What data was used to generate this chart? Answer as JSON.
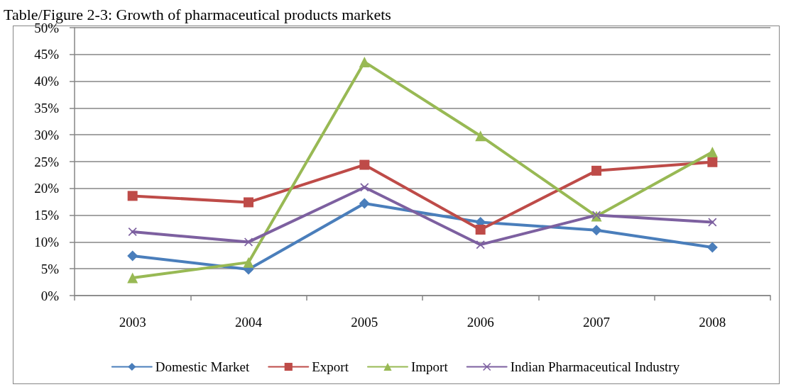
{
  "chart_data": {
    "type": "line",
    "title": "Table/Figure 2-3: Growth of pharmaceutical products markets",
    "categories": [
      "2003",
      "2004",
      "2005",
      "2006",
      "2007",
      "2008"
    ],
    "series": [
      {
        "name": "Domestic Market",
        "color": "#4a7ebb",
        "marker": "diamond",
        "values": [
          7.4,
          4.9,
          17.2,
          13.7,
          12.2,
          9.0
        ]
      },
      {
        "name": "Export",
        "color": "#be4b48",
        "marker": "square",
        "values": [
          18.6,
          17.4,
          24.4,
          12.3,
          23.3,
          24.9
        ]
      },
      {
        "name": "Import",
        "color": "#98b954",
        "marker": "triangle",
        "values": [
          3.3,
          6.2,
          43.6,
          29.8,
          14.8,
          26.8
        ]
      },
      {
        "name": "Indian Pharmaceutical Industry",
        "color": "#7d60a0",
        "marker": "cross",
        "values": [
          11.9,
          10.0,
          20.2,
          9.5,
          15.0,
          13.7
        ]
      }
    ],
    "ylim": [
      0,
      50
    ],
    "yticks": [
      {
        "value": 0,
        "label": "0%"
      },
      {
        "value": 5,
        "label": "5%"
      },
      {
        "value": 10,
        "label": "10%"
      },
      {
        "value": 15,
        "label": "15%"
      },
      {
        "value": 20,
        "label": "20%"
      },
      {
        "value": 25,
        "label": "25%"
      },
      {
        "value": 30,
        "label": "30%"
      },
      {
        "value": 35,
        "label": "35%"
      },
      {
        "value": 40,
        "label": "40%"
      },
      {
        "value": 45,
        "label": "45%"
      },
      {
        "value": 50,
        "label": "50%"
      }
    ],
    "grid": "y",
    "legend": "bottom",
    "line_style": "solid"
  }
}
